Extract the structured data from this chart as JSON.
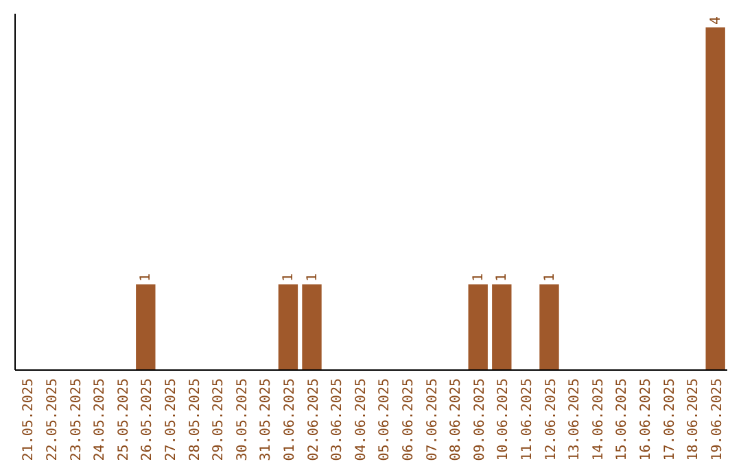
{
  "chart_data": {
    "type": "bar",
    "categories": [
      "21.05.2025",
      "22.05.2025",
      "23.05.2025",
      "24.05.2025",
      "25.05.2025",
      "26.05.2025",
      "27.05.2025",
      "28.05.2025",
      "29.05.2025",
      "30.05.2025",
      "31.05.2025",
      "01.06.2025",
      "02.06.2025",
      "03.06.2025",
      "04.06.2025",
      "05.06.2025",
      "06.06.2025",
      "07.06.2025",
      "08.06.2025",
      "09.06.2025",
      "10.06.2025",
      "11.06.2025",
      "12.06.2025",
      "13.06.2025",
      "14.06.2025",
      "15.06.2025",
      "16.06.2025",
      "17.06.2025",
      "18.06.2025",
      "19.06.2025"
    ],
    "values": [
      0,
      0,
      0,
      0,
      0,
      1,
      0,
      0,
      0,
      0,
      0,
      1,
      1,
      0,
      0,
      0,
      0,
      0,
      0,
      1,
      1,
      0,
      1,
      0,
      0,
      0,
      0,
      0,
      0,
      4
    ],
    "value_labels": [
      null,
      null,
      null,
      null,
      null,
      "1",
      null,
      null,
      null,
      null,
      null,
      "1",
      "1",
      null,
      null,
      null,
      null,
      null,
      null,
      "1",
      "1",
      null,
      "1",
      null,
      null,
      null,
      null,
      null,
      null,
      "4"
    ],
    "color": "#a0592b",
    "tick_labels": "x"
  }
}
